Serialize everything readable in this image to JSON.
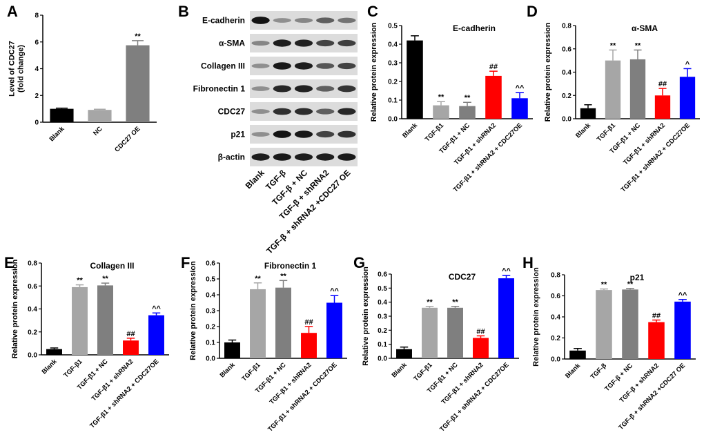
{
  "panel_labels": [
    "A",
    "B",
    "C",
    "D",
    "E",
    "F",
    "G",
    "H"
  ],
  "colors": {
    "black": "#000000",
    "light_gray": "#a6a6a6",
    "dark_gray": "#7f7f7f",
    "red": "#ff0000",
    "blue": "#0000ff"
  },
  "blot": {
    "rows": [
      "E-cadherin",
      "α-SMA",
      "Collagen III",
      "Fibronectin 1",
      "CDC27",
      "p21",
      "β-actin"
    ],
    "lanes": [
      "Blank",
      "TGF-β",
      "TGF-β + NC",
      "TGF-β + shRNA2",
      "TGF-β + shRNA2 +CDC27 OE"
    ],
    "band_intensity": [
      [
        0.95,
        0.3,
        0.35,
        0.55,
        0.45
      ],
      [
        0.35,
        0.9,
        0.88,
        0.7,
        0.72
      ],
      [
        0.3,
        0.92,
        0.9,
        0.6,
        0.7
      ],
      [
        0.3,
        0.85,
        0.88,
        0.55,
        0.78
      ],
      [
        0.3,
        0.8,
        0.82,
        0.55,
        0.85
      ],
      [
        0.3,
        0.95,
        0.93,
        0.7,
        0.8
      ],
      [
        0.9,
        0.92,
        0.9,
        0.9,
        0.92
      ]
    ]
  },
  "chart_data": [
    {
      "panel": "A",
      "type": "bar",
      "title": "",
      "ylabel": "Level of CDC27 (fold change)",
      "ylabel_lines": [
        "Level of CDC27",
        "(fold change)"
      ],
      "ylim": [
        0,
        8
      ],
      "yticks": [
        "0",
        "2",
        "4",
        "6",
        "8"
      ],
      "categories": [
        "Blank",
        "NC",
        "CDC27 OE"
      ],
      "values": [
        1.0,
        0.92,
        5.75
      ],
      "errors": [
        0.05,
        0.05,
        0.35
      ],
      "colors": [
        "#000000",
        "#a6a6a6",
        "#7f7f7f"
      ],
      "annotations": [
        "",
        "",
        "**"
      ]
    },
    {
      "panel": "C",
      "type": "bar",
      "title": "E-cadherin",
      "ylabel": "Relative protein expression",
      "ylim": [
        0,
        0.5
      ],
      "yticks": [
        "0.0",
        "0.1",
        "0.2",
        "0.3",
        "0.4",
        "0.5"
      ],
      "categories": [
        "Blank",
        "TGF-β1",
        "TGF-β1 + NC",
        "TGF-β1 + shRNA2",
        "TGF-β1 + shRNA2 + CDC27OE"
      ],
      "values": [
        0.42,
        0.072,
        0.068,
        0.23,
        0.11
      ],
      "errors": [
        0.025,
        0.02,
        0.02,
        0.025,
        0.03
      ],
      "colors": [
        "#000000",
        "#a6a6a6",
        "#7f7f7f",
        "#ff0000",
        "#0000ff"
      ],
      "annotations": [
        "",
        "**",
        "**",
        "##",
        "^^"
      ]
    },
    {
      "panel": "D",
      "type": "bar",
      "title": "α-SMA",
      "ylabel": "Relative protein expression",
      "ylim": [
        0,
        0.8
      ],
      "yticks": [
        "0.0",
        "0.2",
        "0.4",
        "0.6",
        "0.8"
      ],
      "categories": [
        "Blank",
        "TGF-β1",
        "TGF-β1 + NC",
        "TGF-β1 + shRNA2",
        "TGF-β1 + shRNA2 + CDC27OE"
      ],
      "values": [
        0.09,
        0.5,
        0.51,
        0.2,
        0.36
      ],
      "errors": [
        0.03,
        0.09,
        0.08,
        0.06,
        0.07
      ],
      "colors": [
        "#000000",
        "#a6a6a6",
        "#7f7f7f",
        "#ff0000",
        "#0000ff"
      ],
      "annotations": [
        "",
        "**",
        "**",
        "##",
        "^"
      ]
    },
    {
      "panel": "E",
      "type": "bar",
      "title": "Collagen  III",
      "ylabel": "Relative protein expression",
      "ylim": [
        0,
        0.8
      ],
      "yticks": [
        "0.0",
        "0.2",
        "0.4",
        "0.6",
        "0.8"
      ],
      "categories": [
        "Blank",
        "TGF-β1",
        "TGF-β1 + NC",
        "TGF-β1 + shRNA2",
        "TGF-β1 + shRNA2 + CDC27OE"
      ],
      "values": [
        0.05,
        0.59,
        0.605,
        0.125,
        0.345
      ],
      "errors": [
        0.01,
        0.02,
        0.02,
        0.02,
        0.02
      ],
      "colors": [
        "#000000",
        "#a6a6a6",
        "#7f7f7f",
        "#ff0000",
        "#0000ff"
      ],
      "annotations": [
        "",
        "**",
        "**",
        "##",
        "^^"
      ]
    },
    {
      "panel": "F",
      "type": "bar",
      "title": "Fibronectin 1",
      "ylabel": "Relative protein expression",
      "ylim": [
        0,
        0.6
      ],
      "yticks": [
        "0.0",
        "0.1",
        "0.2",
        "0.3",
        "0.4",
        "0.5",
        "0.6"
      ],
      "categories": [
        "Blank",
        "TGF-β1",
        "TGF-β1 + NC",
        "TGF-β1 + shRNA2",
        "TGF-β1 + shRNA2 + CDC27OE"
      ],
      "values": [
        0.1,
        0.435,
        0.445,
        0.16,
        0.35
      ],
      "errors": [
        0.015,
        0.04,
        0.045,
        0.04,
        0.045
      ],
      "colors": [
        "#000000",
        "#a6a6a6",
        "#7f7f7f",
        "#ff0000",
        "#0000ff"
      ],
      "annotations": [
        "",
        "**",
        "**",
        "##",
        "^^"
      ]
    },
    {
      "panel": "G",
      "type": "bar",
      "title": "CDC27",
      "ylabel": "Relative protein expression",
      "ylim": [
        0,
        0.6
      ],
      "yticks": [
        "0.0",
        "0.1",
        "0.2",
        "0.3",
        "0.4",
        "0.5",
        "0.6"
      ],
      "categories": [
        "Blank",
        "TGF-β1",
        "TGF-β1 + NC",
        "TGF-β1 + shRNA2",
        "TGF-β1 + shRNA2 + CDC27OE"
      ],
      "values": [
        0.065,
        0.36,
        0.36,
        0.145,
        0.57
      ],
      "errors": [
        0.015,
        0.01,
        0.01,
        0.015,
        0.02
      ],
      "colors": [
        "#000000",
        "#a6a6a6",
        "#7f7f7f",
        "#ff0000",
        "#0000ff"
      ],
      "annotations": [
        "",
        "**",
        "**",
        "##",
        "^^"
      ]
    },
    {
      "panel": "H",
      "type": "bar",
      "title": "p21",
      "ylabel": "Relative protein expression",
      "ylim": [
        0,
        0.8
      ],
      "yticks": [
        "0.0",
        "0.2",
        "0.4",
        "0.6",
        "0.8"
      ],
      "categories": [
        "Blank",
        "TGF-β",
        "TGF-β + NC",
        "TGF-β + shRNA2",
        "TGF-β + shRNA2 +CDC27 OE"
      ],
      "values": [
        0.08,
        0.655,
        0.66,
        0.35,
        0.545
      ],
      "errors": [
        0.02,
        0.01,
        0.01,
        0.02,
        0.02
      ],
      "colors": [
        "#000000",
        "#a6a6a6",
        "#7f7f7f",
        "#ff0000",
        "#0000ff"
      ],
      "annotations": [
        "",
        "**",
        "**",
        "##",
        "^^"
      ]
    }
  ]
}
